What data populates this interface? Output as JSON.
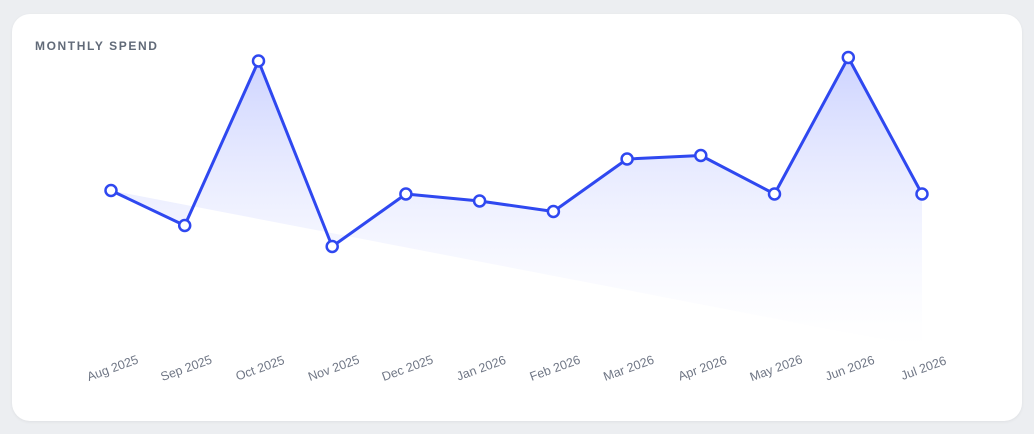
{
  "header": {
    "title": "MONTHLY SPEND"
  },
  "colors": {
    "line": "#2f48f0",
    "fill_top": "#c7ceff",
    "fill_bottom": "#ffffff",
    "marker_fill": "#ffffff",
    "tick_text": "#6f7685",
    "title_text": "#616a78"
  },
  "chart_data": {
    "type": "area",
    "title": "MONTHLY SPEND",
    "xlabel": "",
    "ylabel": "",
    "categories": [
      "Aug 2025",
      "Sep 2025",
      "Oct 2025",
      "Nov 2025",
      "Dec 2025",
      "Jan 2026",
      "Feb 2026",
      "Mar 2026",
      "Apr 2026",
      "May 2026",
      "Jun 2026",
      "Jul 2026"
    ],
    "series": [
      {
        "values": [
          57,
          47,
          94,
          41,
          56,
          54,
          51,
          66,
          67,
          56,
          95,
          56
        ]
      }
    ],
    "ylim": [
      0,
      100
    ],
    "grid": false,
    "legend": "none",
    "markers": "hollow-circle",
    "y_axis_visible": false
  }
}
